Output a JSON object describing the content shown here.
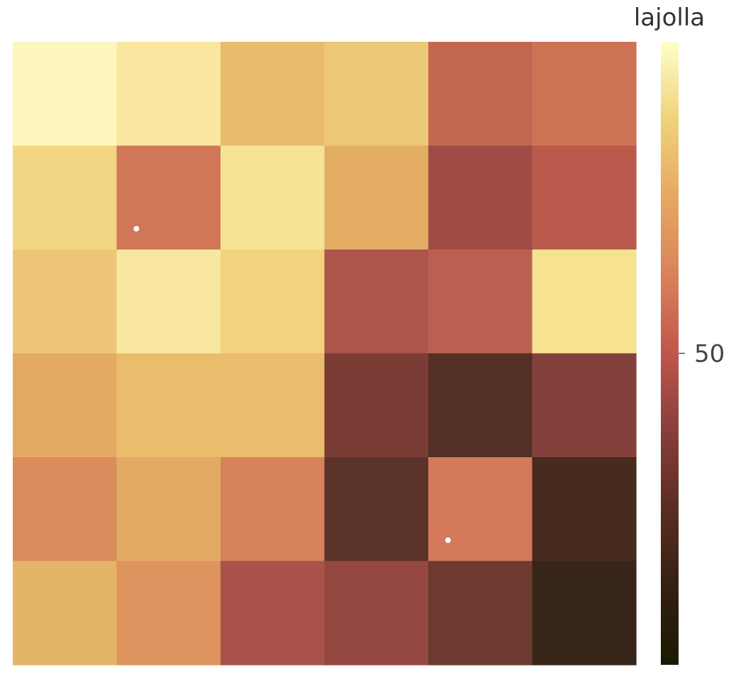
{
  "chart_data": {
    "type": "heatmap",
    "title": "",
    "xlabel": "",
    "ylabel": "",
    "rows": 6,
    "cols": 6,
    "colormap": "lajolla",
    "colorbar": {
      "title": "lajolla",
      "range": [
        0,
        100
      ],
      "ticks": [
        50
      ],
      "tick_labels": [
        "50"
      ]
    },
    "cells": [
      [
        "#fcf5bc",
        "#f9e7a0",
        "#e9bc6b",
        "#edc877",
        "#c36751",
        "#cf7355"
      ],
      [
        "#f2d684",
        "#d17656",
        "#f7e395",
        "#e4ad64",
        "#9e4c45",
        "#b95a4d"
      ],
      [
        "#edc777",
        "#f9e6a0",
        "#f2d27e",
        "#ae554b",
        "#bc5f51",
        "#f6e290"
      ],
      [
        "#e4ab64",
        "#e9bd6b",
        "#e9bd6c",
        "#7a3d36",
        "#532f25",
        "#84413c"
      ],
      [
        "#db8c5c",
        "#e3aa63",
        "#d6835b",
        "#5b332b",
        "#d47959",
        "#472b1f"
      ],
      [
        "#e5b567",
        "#de945e",
        "#a85249",
        "#944841",
        "#6d3a32",
        "#362518"
      ]
    ],
    "markers": [
      {
        "row": 1,
        "col": 1,
        "color": "#ffffff"
      },
      {
        "row": 4,
        "col": 4,
        "color": "#ffffff"
      }
    ]
  }
}
